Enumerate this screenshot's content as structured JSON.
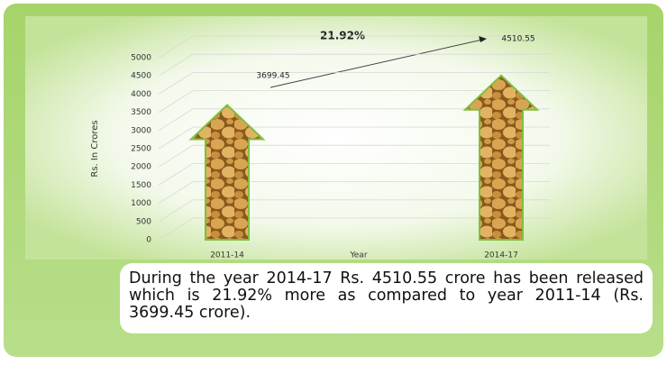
{
  "chart_data": {
    "type": "bar",
    "categories": [
      "2011-14",
      "2014-17"
    ],
    "values": [
      3699.45,
      4510.55
    ],
    "ylim": [
      0,
      5000
    ],
    "yticks": [
      0,
      500,
      1000,
      1500,
      2000,
      2500,
      3000,
      3500,
      4000,
      4500,
      5000
    ],
    "y_label": "Rs. In Crores",
    "x_label": "Year",
    "annotation": "21.92%",
    "grid": true
  },
  "caption": "During the year 2014-17 Rs. 4510.55 crore has been released which is 21.92% more as compared to year 2011-14 (Rs. 3699.45 crore)."
}
